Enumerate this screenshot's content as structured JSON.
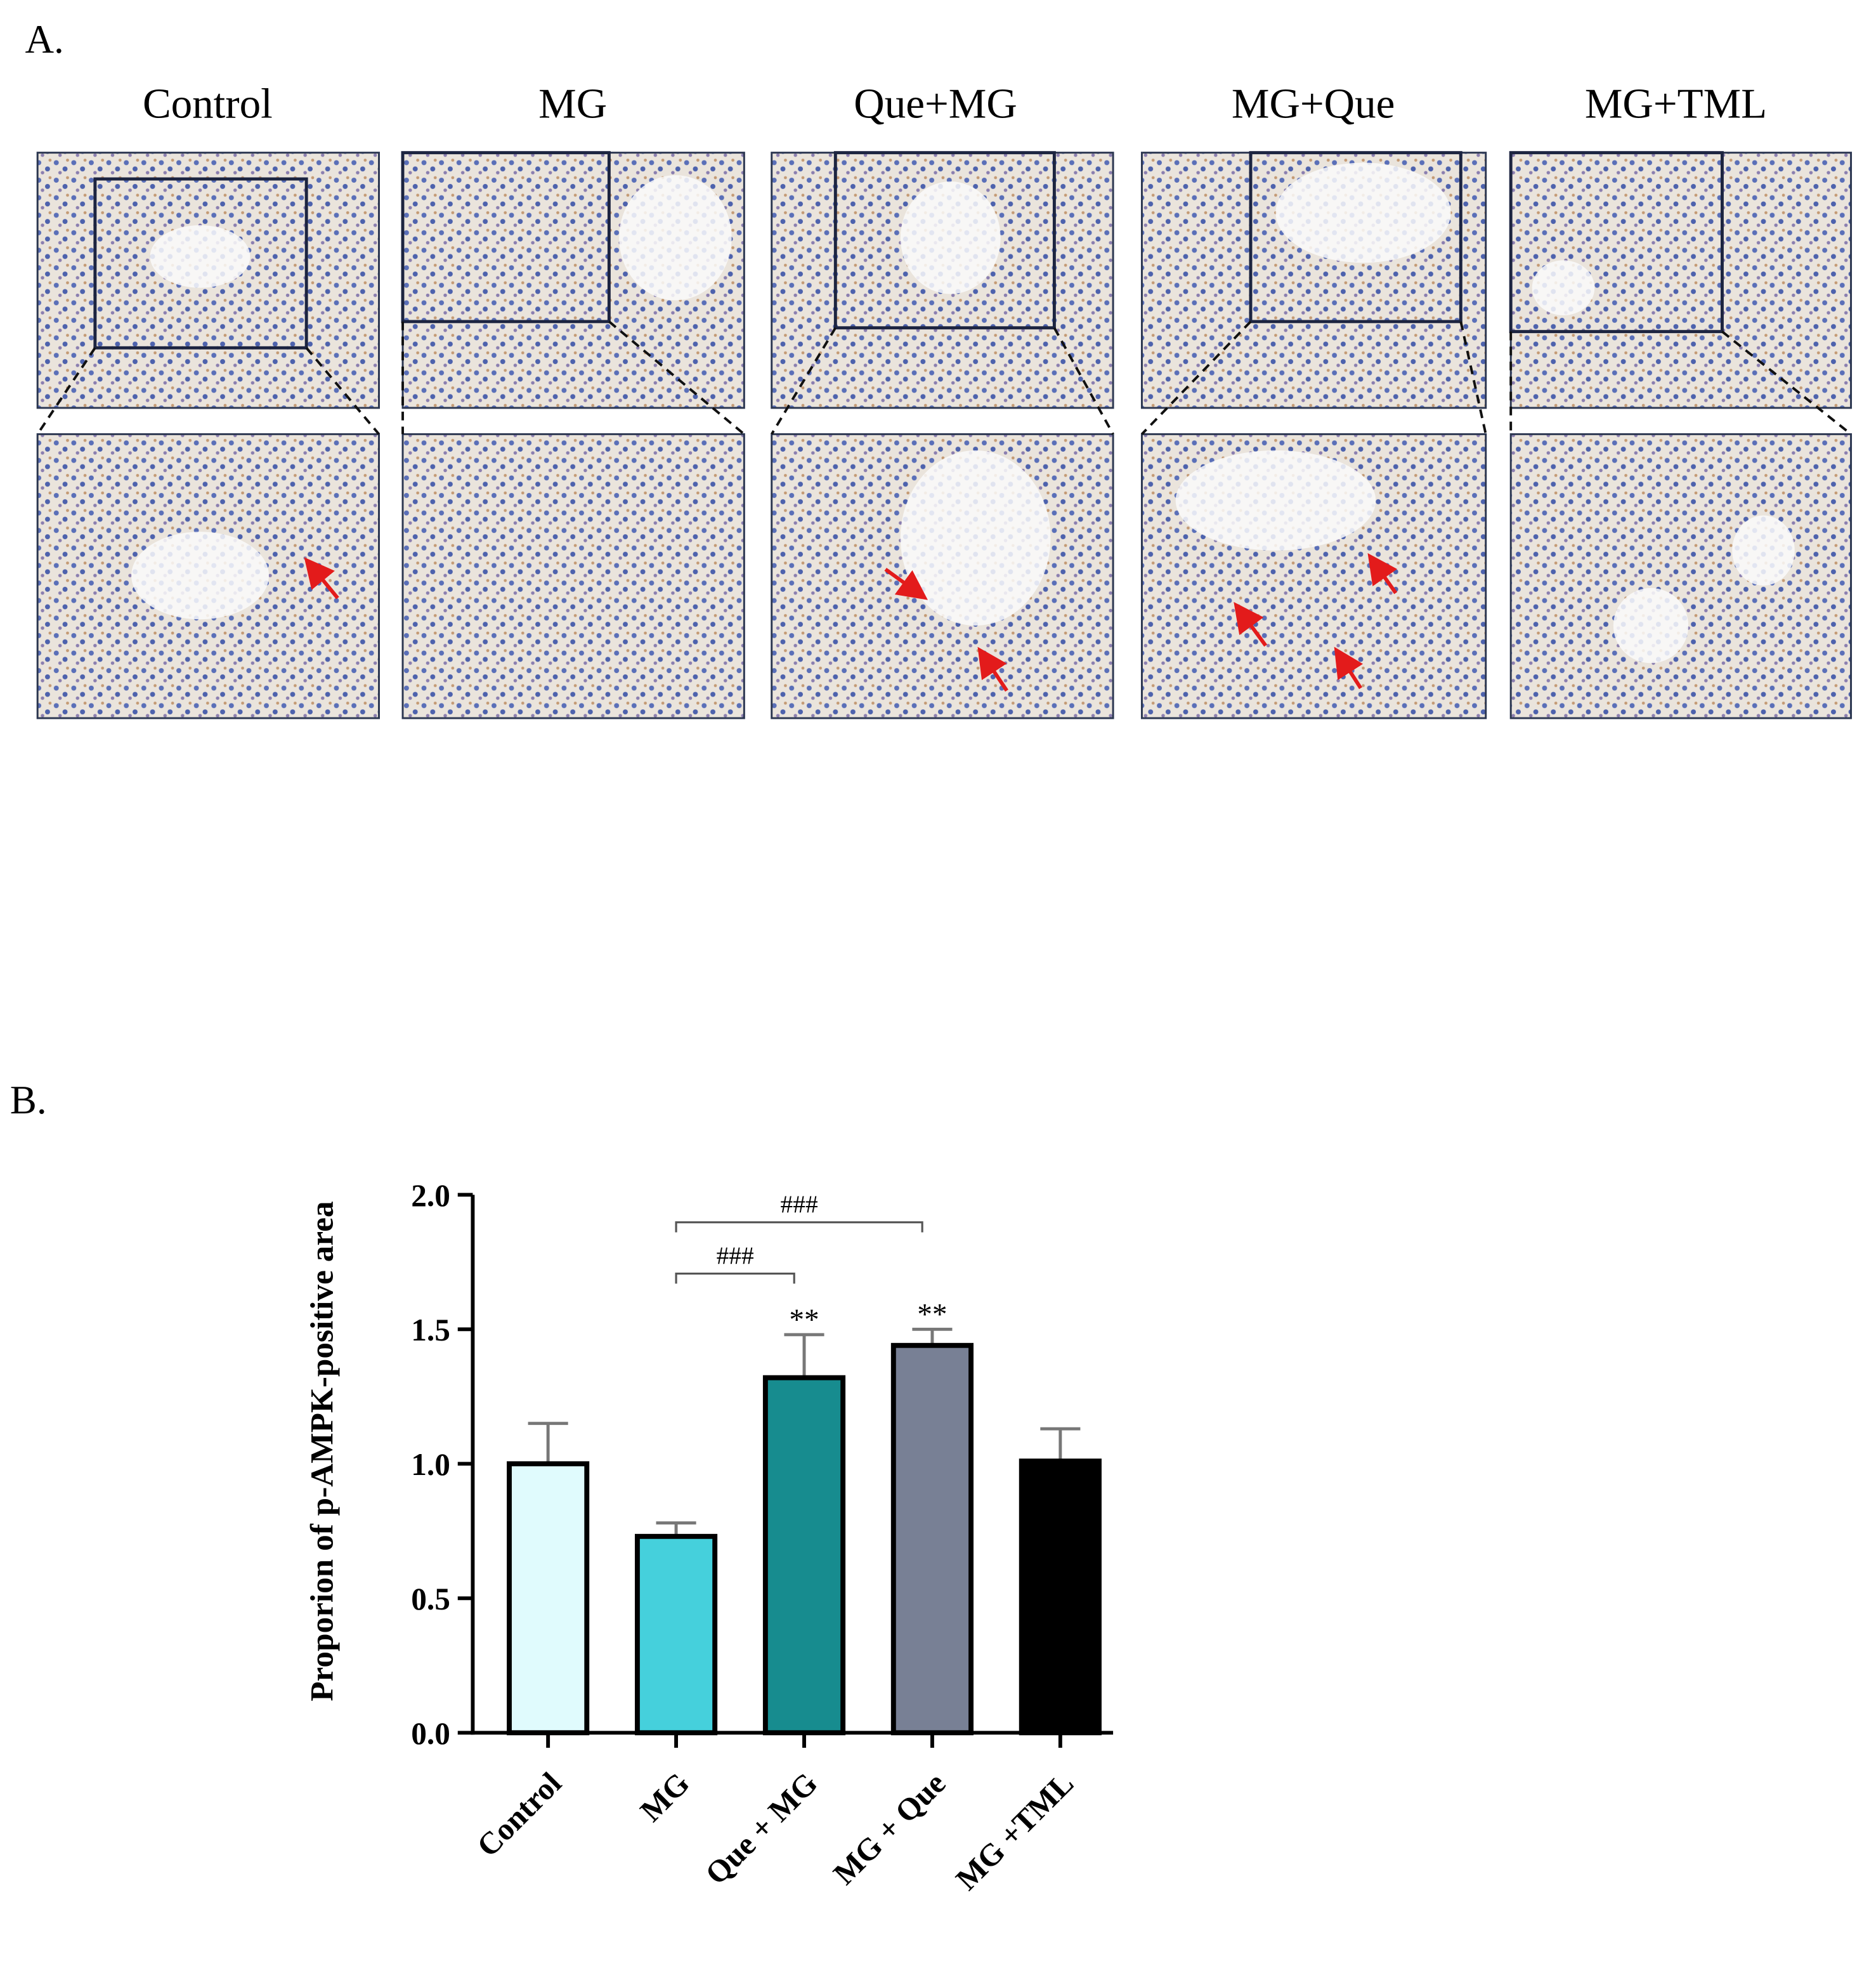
{
  "panel_a": {
    "label": "A.",
    "groups": [
      "Control",
      "MG",
      "Que+MG",
      "MG+Que",
      "MG+TML"
    ]
  },
  "chart_data": {
    "type": "bar",
    "panel_label": "B.",
    "y_label": "Proporion of p-AMPK-positive area",
    "categories": [
      "Control",
      "MG",
      "Que + MG",
      "MG + Que",
      "MG +TML"
    ],
    "values": [
      1.0,
      0.73,
      1.32,
      1.44,
      1.01
    ],
    "errors": [
      0.15,
      0.05,
      0.16,
      0.06,
      0.12
    ],
    "colors": [
      "#e0fbfd",
      "#45d0dc",
      "#178c8f",
      "#788095",
      "#000000"
    ],
    "ylim": [
      0,
      2
    ],
    "yticks": [
      {
        "value": 0,
        "label": "0.0"
      },
      {
        "value": 0.5,
        "label": "0.5"
      },
      {
        "value": 1,
        "label": "1.0"
      },
      {
        "value": 1.5,
        "label": "1.5"
      },
      {
        "value": 2,
        "label": "2.0"
      }
    ],
    "significance": [
      {
        "label": "**",
        "category": "Que + MG"
      },
      {
        "label": "**",
        "category": "MG + Que"
      }
    ],
    "brackets": [
      {
        "label": "###",
        "from": "MG",
        "to": "Que + MG"
      },
      {
        "label": "###",
        "from": "MG",
        "to": "MG + Que"
      }
    ]
  }
}
